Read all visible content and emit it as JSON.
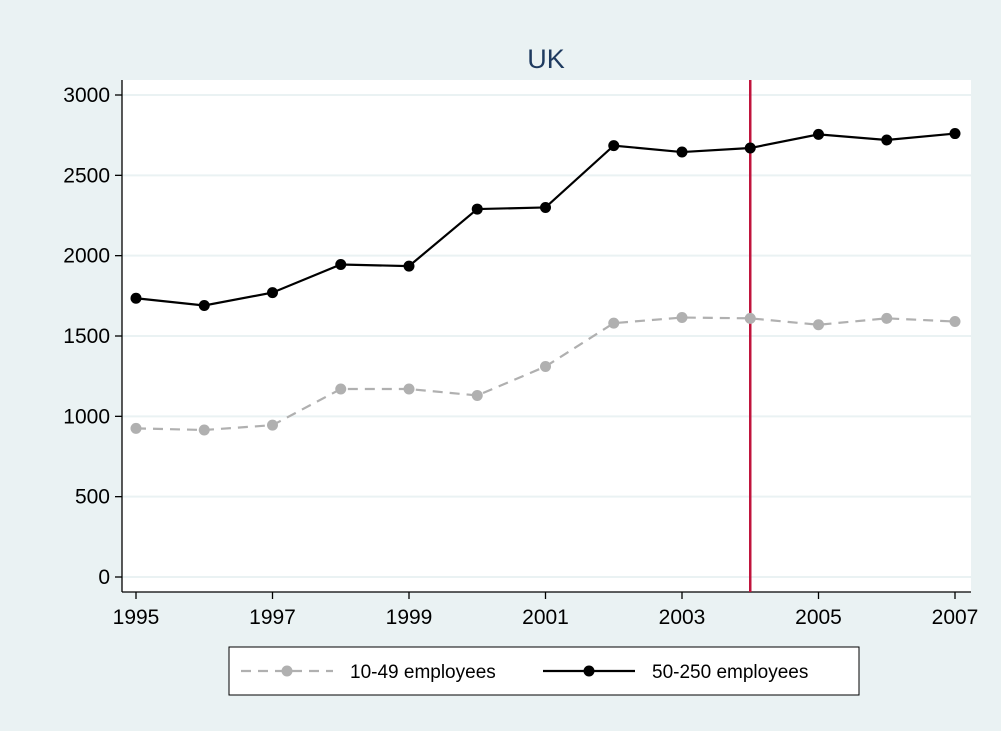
{
  "colors": {
    "outer_background": "#eaf2f3",
    "plot_background": "#ffffff",
    "grid": "#eaf2f3",
    "title": "#1e3a5f",
    "series_small": "#b0b0b0",
    "series_large": "#000000",
    "reference_line": "#c0143c"
  },
  "chart_data": {
    "type": "line",
    "title": "UK",
    "xlabel": "",
    "ylabel": "",
    "x": [
      1995,
      1996,
      1997,
      1998,
      1999,
      2000,
      2001,
      2002,
      2003,
      2004,
      2005,
      2006,
      2007
    ],
    "xlim": [
      1995,
      2007
    ],
    "ylim": [
      0,
      3000
    ],
    "x_ticks": [
      1995,
      1997,
      1999,
      2001,
      2003,
      2005,
      2007
    ],
    "x_tick_labels": [
      "1995",
      "1997",
      "1999",
      "2001",
      "2003",
      "2005",
      "2007"
    ],
    "y_ticks": [
      0,
      500,
      1000,
      1500,
      2000,
      2500,
      3000
    ],
    "y_tick_labels": [
      "0",
      "500",
      "1000",
      "1500",
      "2000",
      "2500",
      "3000"
    ],
    "grid": true,
    "legend_position": "bottom",
    "reference_line_x": 2004,
    "series": [
      {
        "name": "10-49 employees",
        "style": "dashed",
        "color": "#b0b0b0",
        "values": [
          925,
          915,
          945,
          1170,
          1170,
          1130,
          1310,
          1580,
          1615,
          1610,
          1570,
          1610,
          1590
        ]
      },
      {
        "name": "50-250 employees",
        "style": "solid",
        "color": "#000000",
        "values": [
          1735,
          1690,
          1770,
          1945,
          1935,
          2290,
          2300,
          2685,
          2645,
          2670,
          2755,
          2720,
          2760
        ]
      }
    ]
  }
}
